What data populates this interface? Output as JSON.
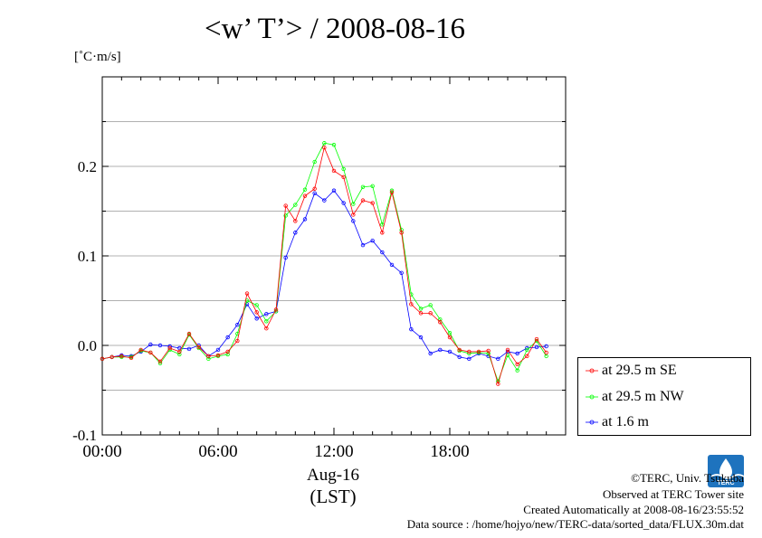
{
  "title": "<w’ T’> / 2008-08-16",
  "unit_label": "[˚C·m/s]",
  "xaxis": {
    "date_label": "Aug-16",
    "tz_label": "(LST)"
  },
  "footer": {
    "copyright": "©TERC, Univ. Tsukuba",
    "site": "Observed at TERC Tower site",
    "created": "Created Automatically at 2008-08-16/23:55:52",
    "source": "Data source : /home/hojyo/new/TERC-data/sorted_data/FLUX.30m.dat"
  },
  "logo": {
    "text": "TERC"
  },
  "chart_data": {
    "type": "line",
    "title": "<w’ T’> / 2008-08-16",
    "ylabel": "[˚C·m/s]",
    "xlabel": "Aug-16 (LST)",
    "xlim": [
      0,
      24
    ],
    "ylim": [
      -0.1,
      0.3
    ],
    "x_ticks": [
      0,
      6,
      12,
      18
    ],
    "x_tick_labels": [
      "00:00",
      "06:00",
      "12:00",
      "18:00"
    ],
    "y_ticks": [
      -0.1,
      0.0,
      0.1,
      0.2
    ],
    "y_tick_labels": [
      "-0.1",
      "0.0",
      "0.1",
      "0.2"
    ],
    "grid": true,
    "legend_position": "bottom-right, outside",
    "x": [
      0,
      0.5,
      1,
      1.5,
      2,
      2.5,
      3,
      3.5,
      4,
      4.5,
      5,
      5.5,
      6,
      6.5,
      7,
      7.5,
      8,
      8.5,
      9,
      9.5,
      10,
      10.5,
      11,
      11.5,
      12,
      12.5,
      13,
      13.5,
      14,
      14.5,
      15,
      15.5,
      16,
      16.5,
      17,
      17.5,
      18,
      18.5,
      19,
      19.5,
      20,
      20.5,
      21,
      21.5,
      22,
      22.5,
      23
    ],
    "series": [
      {
        "name": "at 29.5 m SE",
        "color": "#ff0000",
        "values": [
          -0.015,
          -0.013,
          -0.012,
          -0.014,
          -0.005,
          -0.008,
          -0.018,
          -0.003,
          -0.007,
          0.013,
          -0.002,
          -0.012,
          -0.011,
          -0.007,
          0.005,
          0.058,
          0.037,
          0.019,
          0.04,
          0.156,
          0.139,
          0.167,
          0.175,
          0.221,
          0.195,
          0.188,
          0.146,
          0.162,
          0.159,
          0.126,
          0.171,
          0.126,
          0.046,
          0.036,
          0.036,
          0.026,
          0.009,
          -0.005,
          -0.007,
          -0.007,
          -0.006,
          -0.043,
          -0.005,
          -0.021,
          -0.012,
          0.007,
          -0.008
        ]
      },
      {
        "name": "at 29.5 m NW",
        "color": "#00ff00",
        "values": [
          -0.015,
          -0.013,
          -0.013,
          -0.013,
          -0.006,
          -0.008,
          -0.02,
          -0.005,
          -0.01,
          0.012,
          -0.003,
          -0.015,
          -0.012,
          -0.01,
          0.013,
          0.05,
          0.045,
          0.027,
          0.038,
          0.145,
          0.157,
          0.174,
          0.205,
          0.226,
          0.224,
          0.197,
          0.158,
          0.177,
          0.178,
          0.135,
          0.173,
          0.129,
          0.057,
          0.041,
          0.045,
          0.029,
          0.014,
          -0.006,
          -0.009,
          -0.008,
          -0.009,
          -0.04,
          -0.011,
          -0.028,
          -0.005,
          0.005,
          -0.012
        ]
      },
      {
        "name": "at 1.6 m",
        "color": "#0000ff",
        "values": [
          -0.015,
          -0.013,
          -0.011,
          -0.012,
          -0.007,
          0.001,
          0.0,
          -0.001,
          -0.003,
          -0.004,
          0.0,
          -0.012,
          -0.005,
          0.009,
          0.023,
          0.046,
          0.03,
          0.035,
          0.038,
          0.098,
          0.126,
          0.141,
          0.17,
          0.162,
          0.173,
          0.159,
          0.139,
          0.112,
          0.117,
          0.104,
          0.09,
          0.081,
          0.018,
          0.009,
          -0.009,
          -0.005,
          -0.007,
          -0.013,
          -0.015,
          -0.009,
          -0.012,
          -0.015,
          -0.007,
          -0.009,
          -0.003,
          -0.002,
          -0.001
        ]
      }
    ]
  }
}
